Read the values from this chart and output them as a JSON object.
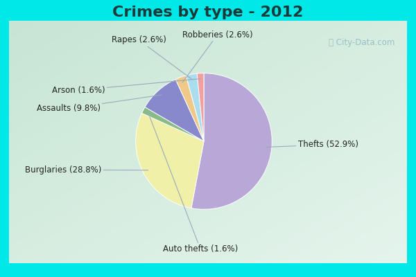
{
  "title": "Crimes by type - 2012",
  "title_fontsize": 16,
  "title_fontweight": "bold",
  "labels": [
    "Thefts",
    "Burglaries",
    "Auto thefts",
    "Assaults",
    "Robberies",
    "Rapes",
    "Arson"
  ],
  "percentages": [
    52.9,
    28.8,
    1.6,
    9.8,
    2.6,
    2.6,
    1.6
  ],
  "colors": [
    "#b8a8d8",
    "#f0f0a8",
    "#88bb88",
    "#8888cc",
    "#f0c888",
    "#aaddee",
    "#f0a0a0"
  ],
  "border_color": "#00e8e8",
  "border_width": 8,
  "bg_color_topleft": "#c8e8d8",
  "bg_color_center": "#e8f4ec",
  "bg_color_bottomright": "#d0e8c8",
  "startangle": 90,
  "label_fontsize": 8.5,
  "watermark": "City-Data.com"
}
